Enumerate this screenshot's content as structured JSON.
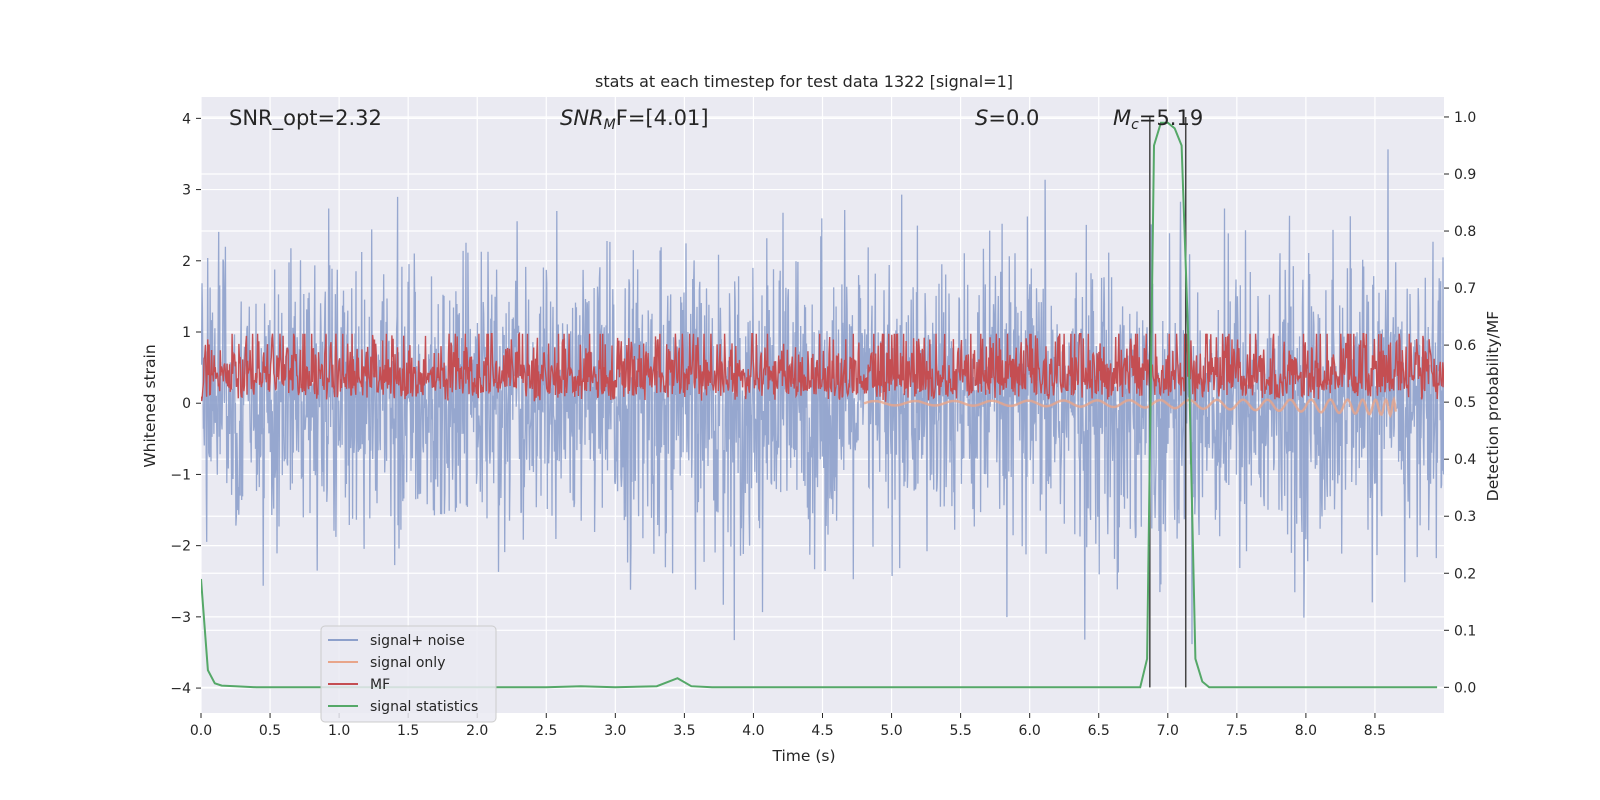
{
  "chart_data": {
    "type": "line",
    "title": "stats at each timestep for test data 1322 [signal=1]",
    "xlabel": "Time (s)",
    "ylabel_left": "Whitened strain",
    "ylabel_right": "Detection probability/MF",
    "xlim": [
      0,
      9.0
    ],
    "ylim_left": [
      -4.35,
      4.3
    ],
    "ylim_right": [
      -0.045,
      1.035
    ],
    "x_ticks": [
      "0.0",
      "0.5",
      "1.0",
      "1.5",
      "2.0",
      "2.5",
      "3.0",
      "3.5",
      "4.0",
      "4.5",
      "5.0",
      "5.5",
      "6.0",
      "6.5",
      "7.0",
      "7.5",
      "8.0",
      "8.5"
    ],
    "x_tick_values": [
      0,
      0.5,
      1,
      1.5,
      2,
      2.5,
      3,
      3.5,
      4,
      4.5,
      5,
      5.5,
      6,
      6.5,
      7,
      7.5,
      8,
      8.5
    ],
    "y_left_ticks": [
      "−4",
      "−3",
      "−2",
      "−1",
      "0",
      "1",
      "2",
      "3",
      "4"
    ],
    "y_left_tick_values": [
      -4,
      -3,
      -2,
      -1,
      0,
      1,
      2,
      3,
      4
    ],
    "y_right_ticks": [
      "0.0",
      "0.1",
      "0.2",
      "0.3",
      "0.4",
      "0.5",
      "0.6",
      "0.7",
      "0.8",
      "0.9",
      "1.0"
    ],
    "y_right_tick_values": [
      0,
      0.1,
      0.2,
      0.3,
      0.4,
      0.5,
      0.6,
      0.7,
      0.8,
      0.9,
      1.0
    ],
    "annotations": {
      "snr_opt": "SNR_opt=2.32",
      "snr_mf_prefix": "SNR",
      "snr_mf_sub": "M",
      "snr_mf_suffix": "F=[4.01]",
      "s_var": "S",
      "s_value": "=0.0",
      "mc_var": "M",
      "mc_sub": "c",
      "mc_value": "=5.19"
    },
    "vertical_lines_x": [
      6.87,
      7.13
    ],
    "series": [
      {
        "name": "signal+ noise",
        "axis": "left",
        "color": "#8da0cb",
        "style": "noise",
        "x_range": [
          0,
          9.0
        ],
        "sigma": 1.0
      },
      {
        "name": "signal only",
        "axis": "left",
        "color": "#e8a58a",
        "style": "chirp",
        "x_range": [
          4.8,
          8.65
        ]
      },
      {
        "name": "MF",
        "axis": "right",
        "color": "#c44e52",
        "style": "mf",
        "x_range": [
          0,
          9.0
        ],
        "baseline": 0.5,
        "amplitude": 0.1
      },
      {
        "name": "signal statistics",
        "axis": "right",
        "color": "#55a868",
        "style": "line",
        "x": [
          0,
          0.05,
          0.1,
          0.15,
          0.25,
          0.4,
          2.5,
          2.75,
          3.0,
          3.3,
          3.45,
          3.55,
          3.7,
          6.8,
          6.85,
          6.9,
          6.95,
          7.0,
          7.05,
          7.1,
          7.15,
          7.2,
          7.25,
          7.3,
          8.95
        ],
        "values": [
          0.19,
          0.03,
          0.007,
          0.003,
          0.002,
          0.0,
          0.0,
          0.002,
          0.0,
          0.002,
          0.016,
          0.002,
          0.0,
          0.0,
          0.05,
          0.95,
          0.99,
          0.99,
          0.98,
          0.95,
          0.6,
          0.05,
          0.01,
          0.0,
          0.0
        ]
      }
    ],
    "legend": {
      "placement": "lower-left",
      "items": [
        "signal+ noise",
        "signal only",
        "MF",
        "signal statistics"
      ]
    },
    "colors": {
      "background": "#eaeaf2",
      "grid": "#ffffff",
      "vline": "#444444"
    }
  }
}
